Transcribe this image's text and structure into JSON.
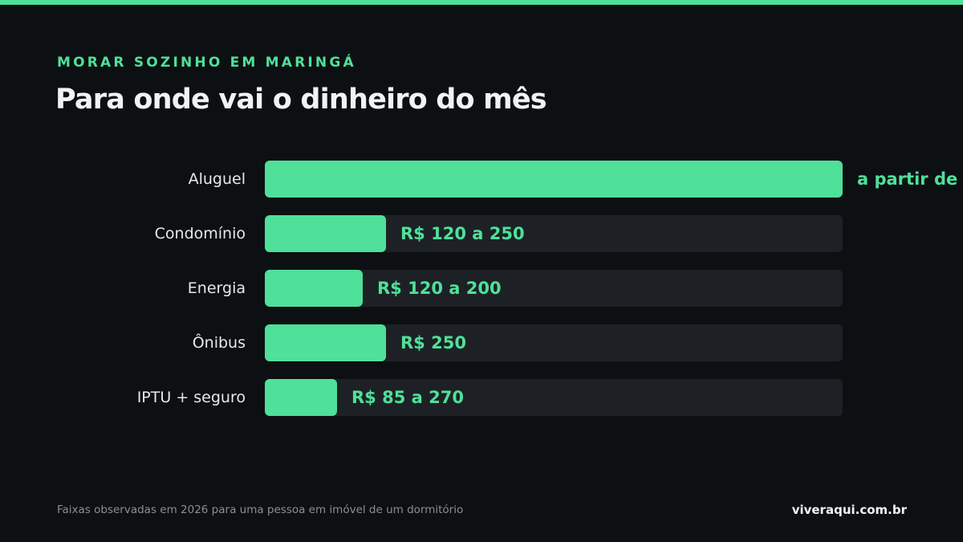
{
  "colors": {
    "accent": "#4fe09a",
    "background": "#0d1012",
    "track": "#1d2125"
  },
  "header": {
    "eyebrow": "MORAR SOZINHO EM MARINGÁ",
    "title": "Para onde vai o dinheiro do mês"
  },
  "chart_data": {
    "type": "bar",
    "orientation": "horizontal",
    "categories": [
      "Aluguel",
      "Condomínio",
      "Energia",
      "Ônibus",
      "IPTU + seguro"
    ],
    "values": [
      1.0,
      0.21,
      0.17,
      0.21,
      0.125
    ],
    "value_labels": [
      "a partir de R",
      "R$ 120 a 250",
      "R$ 120 a 200",
      "R$ 250",
      "R$ 85 a 270"
    ],
    "grid": false
  },
  "footer": {
    "note": "Faixas observadas em 2026 para uma pessoa em imóvel de um dormitório",
    "site": "viveraqui.com.br"
  }
}
